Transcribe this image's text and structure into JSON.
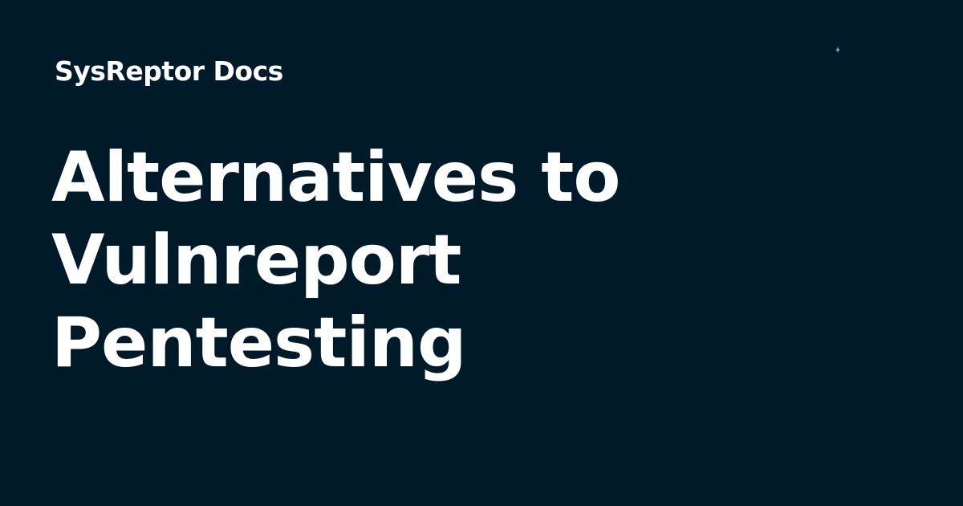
{
  "header": {
    "site_name": "SysReptor Docs"
  },
  "page": {
    "title_lines": [
      "Alternatives to",
      "Vulnreport",
      "Pentesting"
    ]
  },
  "decor": {
    "icon": "sparkle-icon"
  },
  "colors": {
    "background": "#011a2a",
    "text": "#ffffff",
    "accent": "#6fa8dc"
  }
}
